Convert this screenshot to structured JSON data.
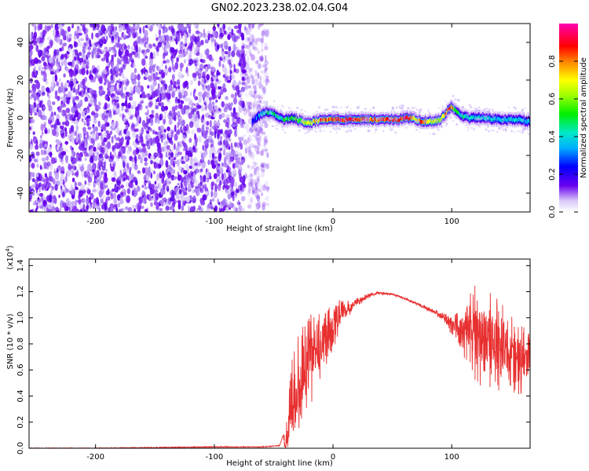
{
  "title": "GN02.2023.238.02.04.G04",
  "chart_data": [
    {
      "type": "heatmap",
      "xlabel": "Height of straight line (km)",
      "ylabel": "Frequency (Hz)",
      "xlim": [
        -256,
        166
      ],
      "ylim": [
        -50,
        50
      ],
      "xticks": [
        -200,
        -100,
        0,
        100
      ],
      "yticks": [
        -40,
        -20,
        0,
        20,
        40
      ],
      "noise_region_x": [
        -256,
        -68
      ],
      "signal_track": {
        "x": [
          -68,
          -60,
          -55,
          -50,
          -45,
          -40,
          -35,
          -30,
          -25,
          -20,
          -15,
          -10,
          0,
          20,
          40,
          55,
          60,
          65,
          70,
          75,
          80,
          85,
          90,
          95,
          98,
          100,
          103,
          108,
          115,
          125,
          140,
          155,
          166
        ],
        "y": [
          -2,
          2,
          3,
          2,
          0,
          -1,
          0,
          -1,
          -2,
          -3,
          -2,
          -1,
          -1,
          -1,
          -1,
          -1,
          0,
          0,
          -1,
          -2,
          -2,
          -2,
          -1,
          2,
          5,
          6,
          4,
          1,
          0,
          0,
          -1,
          -1,
          -2
        ],
        "amp": [
          0.3,
          0.45,
          0.5,
          0.5,
          0.5,
          0.55,
          0.55,
          0.6,
          0.7,
          0.75,
          0.8,
          0.85,
          0.95,
          0.95,
          0.9,
          0.95,
          1.0,
          0.95,
          0.7,
          0.9,
          0.85,
          0.75,
          0.7,
          0.8,
          0.95,
          0.9,
          0.6,
          0.5,
          0.45,
          0.45,
          0.45,
          0.45,
          0.4
        ]
      },
      "colorbar": {
        "label": "Normalized spectral amplitude",
        "range": [
          0,
          1
        ],
        "ticks": [
          "0.0",
          "0.2",
          "0.4",
          "0.6",
          "0.8"
        ]
      }
    },
    {
      "type": "line",
      "xlabel": "Height of straight line (km)",
      "ylabel": "SNR (10 * v/v)",
      "multiplier_label": "(x10",
      "multiplier_exp": "4",
      "multiplier_close": ")",
      "xlim": [
        -256,
        166
      ],
      "ylim": [
        0,
        1.45
      ],
      "xticks": [
        -200,
        -100,
        0,
        100
      ],
      "yticks": [
        "0.0",
        "0.2",
        "0.4",
        "0.6",
        "0.8",
        "1.0",
        "1.2",
        "1.4"
      ],
      "color": "#e83030",
      "series": [
        {
          "x": [
            -256,
            -200,
            -150,
            -100,
            -60,
            -45,
            -42,
            -40,
            -35,
            -30,
            -25,
            -20,
            -15,
            -10,
            -5,
            0,
            10,
            20,
            30,
            40,
            50,
            60,
            70,
            80,
            90,
            95,
            100,
            105,
            110,
            115,
            120,
            125,
            130,
            140,
            150,
            160,
            166
          ],
          "y": [
            0.0,
            0.0,
            0.005,
            0.01,
            0.01,
            0.02,
            0.1,
            0.03,
            0.3,
            0.45,
            0.55,
            0.65,
            0.72,
            0.8,
            0.88,
            0.95,
            1.05,
            1.12,
            1.17,
            1.19,
            1.18,
            1.15,
            1.11,
            1.07,
            1.02,
            0.98,
            0.95,
            0.92,
            0.9,
            0.9,
            0.88,
            0.85,
            0.82,
            0.78,
            0.72,
            0.68,
            0.62
          ],
          "spread": [
            0.0,
            0.0,
            0.0,
            0.0,
            0.0,
            0.0,
            0.0,
            0.1,
            0.35,
            0.45,
            0.4,
            0.4,
            0.35,
            0.3,
            0.25,
            0.2,
            0.08,
            0.03,
            0.02,
            0.01,
            0.01,
            0.01,
            0.01,
            0.02,
            0.03,
            0.05,
            0.08,
            0.12,
            0.2,
            0.3,
            0.38,
            0.4,
            0.4,
            0.35,
            0.3,
            0.28,
            0.25
          ]
        }
      ]
    }
  ]
}
